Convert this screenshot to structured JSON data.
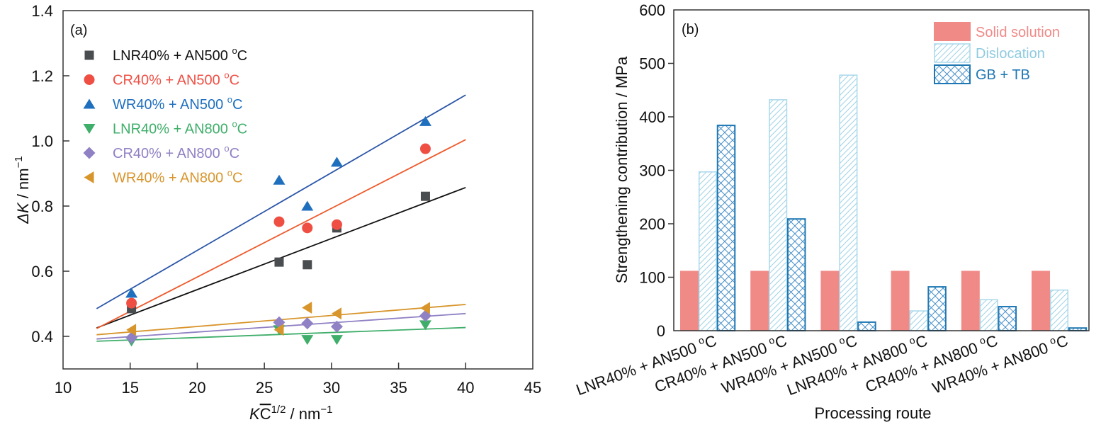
{
  "chart_data": [
    {
      "type": "scatter",
      "panel_label": "(a)",
      "xlabel_main": "K",
      "xlabel_over": "C",
      "xlabel_sup": "1/2",
      "xlabel_rest": " / nm",
      "xlabel_unit_sup": "−1",
      "ylabel_main": "ΔK",
      "ylabel_rest": " / nm",
      "ylabel_sup": "−1",
      "xlim": [
        10,
        45
      ],
      "ylim": [
        0.3,
        1.4
      ],
      "xticks": [
        10,
        15,
        20,
        25,
        30,
        35,
        40,
        45
      ],
      "yticks": [
        0.4,
        0.6,
        0.8,
        1.0,
        1.2,
        1.4
      ],
      "xtick_labels": [
        "10",
        "15",
        "20",
        "25",
        "30",
        "35",
        "40",
        "45"
      ],
      "ytick_labels": [
        "0.4",
        "0.6",
        "0.8",
        "1.0",
        "1.2",
        "1.4"
      ],
      "grid": false,
      "legend_position": "top-left",
      "series": [
        {
          "name": "LNR40% + AN500 °C",
          "label_main": "LNR40% + AN500 ",
          "label_deg": "o",
          "label_c": "C",
          "marker": "square",
          "color": "#4a4d50",
          "line_color": "#111111",
          "x": [
            15.1,
            26.1,
            28.2,
            30.4,
            37.0
          ],
          "y": [
            0.485,
            0.628,
            0.62,
            0.733,
            0.83
          ],
          "fit": {
            "x": [
              12.5,
              40
            ],
            "y": [
              0.426,
              0.857
            ]
          }
        },
        {
          "name": "CR40% + AN500 °C",
          "label_main": "CR40% + AN500 ",
          "label_deg": "o",
          "label_c": "C",
          "marker": "circle",
          "color": "#ef4f43",
          "line_color": "#ee5a2c",
          "x": [
            15.1,
            26.1,
            28.2,
            30.4,
            37.0
          ],
          "y": [
            0.502,
            0.752,
            0.733,
            0.743,
            0.976
          ],
          "fit": {
            "x": [
              12.5,
              40
            ],
            "y": [
              0.424,
              1.004
            ]
          }
        },
        {
          "name": "WR40% + AN500 °C",
          "label_main": "WR40% + AN500 ",
          "label_deg": "o",
          "label_c": "C",
          "marker": "triangle-up",
          "color": "#1f6fbf",
          "line_color": "#2a55a8",
          "x": [
            15.1,
            26.1,
            28.2,
            30.4,
            37.0
          ],
          "y": [
            0.533,
            0.88,
            0.8,
            0.935,
            1.06
          ],
          "fit": {
            "x": [
              12.5,
              40
            ],
            "y": [
              0.485,
              1.141
            ]
          }
        },
        {
          "name": "LNR40% + AN800 °C",
          "label_main": "LNR40% + AN800 ",
          "label_deg": "o",
          "label_c": "C",
          "marker": "triangle-down",
          "color": "#3fae6a",
          "line_color": "#3fae6a",
          "x": [
            15.1,
            26.1,
            28.2,
            30.4,
            37.0
          ],
          "y": [
            0.385,
            0.42,
            0.39,
            0.39,
            0.435
          ],
          "fit": {
            "x": [
              12.5,
              40
            ],
            "y": [
              0.385,
              0.427
            ]
          }
        },
        {
          "name": "CR40% + AN800 °C",
          "label_main": "CR40% + AN800 ",
          "label_deg": "o",
          "label_c": "C",
          "marker": "diamond",
          "color": "#9080c4",
          "line_color": "#9080c4",
          "x": [
            15.1,
            26.1,
            28.2,
            30.4,
            37.0
          ],
          "y": [
            0.396,
            0.443,
            0.44,
            0.43,
            0.463
          ],
          "fit": {
            "x": [
              12.5,
              40
            ],
            "y": [
              0.392,
              0.47
            ]
          }
        },
        {
          "name": "WR40% + AN800 °C",
          "label_main": "WR40% + AN800 ",
          "label_deg": "o",
          "label_c": "C",
          "marker": "triangle-left",
          "color": "#d8952c",
          "line_color": "#d8952c",
          "x": [
            15.1,
            26.1,
            28.2,
            30.4,
            37.0
          ],
          "y": [
            0.42,
            0.42,
            0.488,
            0.47,
            0.487
          ],
          "fit": {
            "x": [
              12.5,
              40
            ],
            "y": [
              0.405,
              0.498
            ]
          }
        }
      ]
    },
    {
      "type": "bar",
      "panel_label": "(b)",
      "title": "",
      "xlabel": "Processing route",
      "ylabel": "Strengthening contribution / MPa",
      "ylim": [
        0,
        600
      ],
      "yticks": [
        0,
        100,
        200,
        300,
        400,
        500,
        600
      ],
      "ytick_labels": [
        "0",
        "100",
        "200",
        "300",
        "400",
        "500",
        "600"
      ],
      "grid": false,
      "legend_position": "top-right",
      "categories": [
        {
          "main": "LNR40% + AN500 ",
          "deg": "o",
          "c": "C"
        },
        {
          "main": "CR40% + AN500 ",
          "deg": "o",
          "c": "C"
        },
        {
          "main": "WR40% + AN500 ",
          "deg": "o",
          "c": "C"
        },
        {
          "main": "LNR40% + AN800 ",
          "deg": "o",
          "c": "C"
        },
        {
          "main": "CR40% + AN800 ",
          "deg": "o",
          "c": "C"
        },
        {
          "main": "WR40% + AN800 ",
          "deg": "o",
          "c": "C"
        }
      ],
      "series": [
        {
          "name": "Solid solution",
          "pattern": "solid",
          "color": "#f08a87",
          "values": [
            112,
            112,
            112,
            112,
            112,
            112
          ]
        },
        {
          "name": "Dislocation",
          "pattern": "diagonal",
          "color": "#8fcbe0",
          "values": [
            297,
            432,
            478,
            37,
            58,
            76
          ]
        },
        {
          "name": "GB + TB",
          "pattern": "crosshatch",
          "color": "#1f78b4",
          "values": [
            384,
            209,
            16,
            82,
            45,
            5
          ]
        }
      ]
    }
  ]
}
